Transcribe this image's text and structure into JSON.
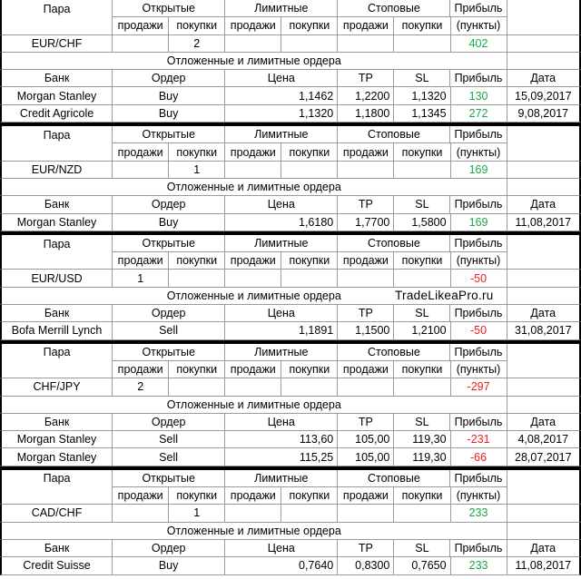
{
  "headers": {
    "pair": "Пара",
    "open": "Открытые",
    "limit": "Лимитные",
    "stop": "Стоповые",
    "profit": "Прибыль",
    "sell": "продажи",
    "buy": "покупки",
    "points": "(пункты)",
    "pending": "Отложенные и лимитные ордера",
    "bank": "Банк",
    "order": "Ордер",
    "price": "Цена",
    "tp": "TP",
    "sl": "SL",
    "date": "Дата"
  },
  "watermark": "TradeLikeaPro.ru",
  "blocks": [
    {
      "pair": "EUR/CHF",
      "open_sell": "",
      "open_buy": "2",
      "profit": "402",
      "profit_color": "green",
      "orders": [
        {
          "bank": "Morgan Stanley",
          "order": "Buy",
          "price": "1,1462",
          "tp": "1,2200",
          "sl": "1,1320",
          "profit": "130",
          "profit_color": "green",
          "date": "15,09,2017"
        },
        {
          "bank": "Credit Agricole",
          "order": "Buy",
          "price": "1,1320",
          "tp": "1,1800",
          "sl": "1,1345",
          "profit": "272",
          "profit_color": "green",
          "date": "9,08,2017"
        }
      ]
    },
    {
      "pair": "EUR/NZD",
      "open_sell": "",
      "open_buy": "1",
      "profit": "169",
      "profit_color": "green",
      "orders": [
        {
          "bank": "Morgan Stanley",
          "order": "Buy",
          "price": "1,6180",
          "tp": "1,7700",
          "sl": "1,5800",
          "profit": "169",
          "profit_color": "green",
          "date": "11,08,2017"
        }
      ]
    },
    {
      "pair": "EUR/USD",
      "open_sell": "1",
      "open_buy": "",
      "profit": "-50",
      "profit_color": "red",
      "orders": [
        {
          "bank": "Bofa Merrill Lynch",
          "order": "Sell",
          "price": "1,1891",
          "tp": "1,1500",
          "sl": "1,2100",
          "profit": "-50",
          "profit_color": "red",
          "date": "31,08,2017"
        }
      ]
    },
    {
      "pair": "CHF/JPY",
      "open_sell": "2",
      "open_buy": "",
      "profit": "-297",
      "profit_color": "red",
      "orders": [
        {
          "bank": "Morgan Stanley",
          "order": "Sell",
          "price": "113,60",
          "tp": "105,00",
          "sl": "119,30",
          "profit": "-231",
          "profit_color": "red",
          "date": "4,08,2017"
        },
        {
          "bank": "Morgan Stanley",
          "order": "Sell",
          "price": "115,25",
          "tp": "105,00",
          "sl": "119,30",
          "profit": "-66",
          "profit_color": "red",
          "date": "28,07,2017"
        }
      ]
    },
    {
      "pair": "CAD/CHF",
      "open_sell": "",
      "open_buy": "1",
      "profit": "233",
      "profit_color": "green",
      "orders": [
        {
          "bank": "Credit Suisse",
          "order": "Buy",
          "price": "0,7640",
          "tp": "0,8300",
          "sl": "0,7650",
          "profit": "233",
          "profit_color": "green",
          "date": "11,08,2017"
        }
      ]
    }
  ]
}
